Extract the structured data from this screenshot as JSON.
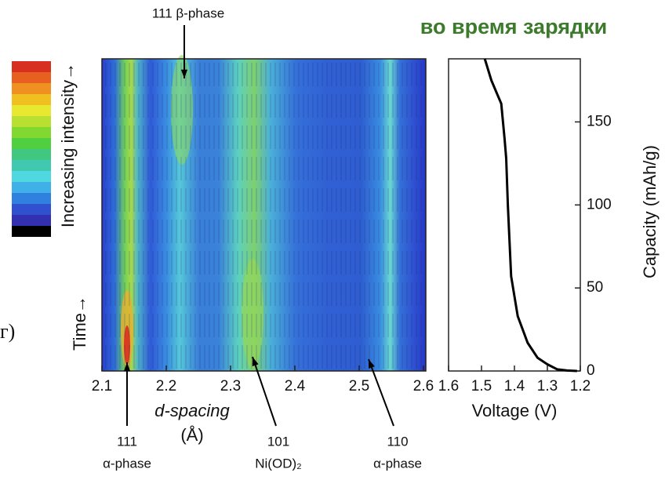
{
  "panel_label": "г)",
  "heading": "во время зарядки",
  "chart_data": [
    {
      "type": "heatmap",
      "colorbar_label": "Increasing intensity→",
      "ylabel": "Time→",
      "xlabel": [
        "d-spacing",
        "(Å)"
      ],
      "xlim": [
        2.1,
        2.6
      ],
      "xticks": [
        2.1,
        2.2,
        2.3,
        2.4,
        2.5,
        2.6
      ],
      "annotations": [
        [
          "111 β-phase"
        ],
        [
          "111",
          "α-phase"
        ],
        [
          "101",
          "Ni(OD)₂"
        ],
        [
          "110",
          "α-phase"
        ]
      ]
    },
    {
      "type": "line",
      "xlabel": "Voltage (V)",
      "ylabel": "Capacity (mAh/g)",
      "xlim": [
        1.6,
        1.2
      ],
      "xticks": [
        1.6,
        1.5,
        1.4,
        1.3,
        1.2
      ],
      "ylim": [
        0,
        188
      ],
      "yticks": [
        0,
        50,
        100,
        150
      ],
      "color": "#000000",
      "series": [
        {
          "x": [
            1.49,
            1.47,
            1.44,
            1.43,
            1.425,
            1.42,
            1.41,
            1.39,
            1.36,
            1.33,
            1.3,
            1.27,
            1.24,
            1.21
          ],
          "values": [
            188,
            175,
            161,
            140,
            128,
            100,
            57,
            33,
            17,
            8,
            4,
            1,
            0.3,
            0
          ]
        }
      ]
    }
  ]
}
